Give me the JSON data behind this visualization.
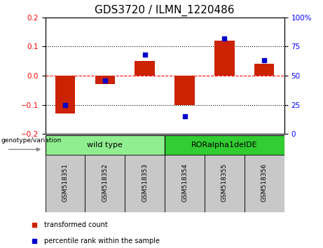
{
  "title": "GDS3720 / ILMN_1220486",
  "samples": [
    "GSM518351",
    "GSM518352",
    "GSM518353",
    "GSM518354",
    "GSM518355",
    "GSM518356"
  ],
  "red_values": [
    -0.13,
    -0.03,
    0.05,
    -0.1,
    0.12,
    0.04
  ],
  "blue_values_pct": [
    25,
    46,
    68,
    15,
    82,
    63
  ],
  "ylim_left": [
    -0.2,
    0.2
  ],
  "ylim_right": [
    0,
    100
  ],
  "yticks_left": [
    -0.2,
    -0.1,
    0.0,
    0.1,
    0.2
  ],
  "yticks_right": [
    0,
    25,
    50,
    75,
    100
  ],
  "ytick_labels_right": [
    "0",
    "25",
    "50",
    "75",
    "100%"
  ],
  "groups": [
    {
      "label": "wild type",
      "samples": [
        0,
        1,
        2
      ],
      "color": "#90EE90"
    },
    {
      "label": "RORalpha1delDE",
      "samples": [
        3,
        4,
        5
      ],
      "color": "#32CD32"
    }
  ],
  "genotype_label": "genotype/variation",
  "legend_red": "transformed count",
  "legend_blue": "percentile rank within the sample",
  "bar_color": "#CC2200",
  "dot_color": "#0000CC",
  "bar_width": 0.5,
  "background_plot": "#FFFFFF",
  "background_xtick": "#C8C8C8",
  "title_fontsize": 11,
  "tick_fontsize": 7.5,
  "label_fontsize": 7.5
}
